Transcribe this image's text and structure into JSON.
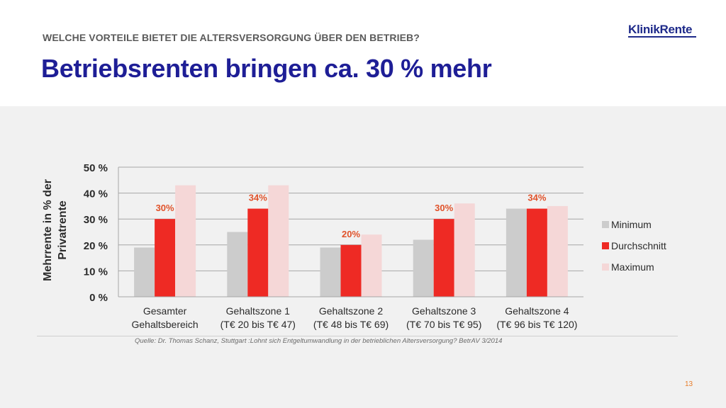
{
  "header": {
    "eyebrow": "WELCHE VORTEILE BIETET DIE ALTERSVERSORGUNG ÜBER DEN BETRIEB?",
    "title": "Betriebsrenten bringen ca. 30 % mehr",
    "logo": "KlinikRente"
  },
  "chart_data": {
    "type": "bar",
    "categories": [
      [
        "Gesamter",
        "Gehaltsbereich"
      ],
      [
        "Gehaltszone 1",
        "(T€ 20 bis T€ 47)"
      ],
      [
        "Gehaltszone 2",
        "(T€ 48 bis T€ 69)"
      ],
      [
        "Gehaltszone 3",
        "(T€ 70 bis T€ 95)"
      ],
      [
        "Gehaltszone 4",
        "(T€ 96 bis T€ 120)"
      ]
    ],
    "series": [
      {
        "name": "Minimum",
        "color": "#cccccc",
        "values": [
          19,
          25,
          19,
          22,
          34
        ]
      },
      {
        "name": "Durchschnitt",
        "color": "#ee2a24",
        "values": [
          30,
          34,
          20,
          30,
          34
        ],
        "data_labels": [
          "30%",
          "34%",
          "20%",
          "30%",
          "34%"
        ]
      },
      {
        "name": "Maximum",
        "color": "#f5d7d7",
        "values": [
          43,
          43,
          24,
          36,
          35
        ]
      }
    ],
    "ylabel": [
      "Mehrrente in % der",
      "Privatrente"
    ],
    "yticks": [
      "0 %",
      "10 %",
      "20 %",
      "30 %",
      "40 %",
      "50 %"
    ],
    "ylim": [
      0,
      50
    ],
    "grid": true,
    "legend": "right",
    "label_color": "#e0522a"
  },
  "footer": {
    "source": "Quelle: Dr. Thomas Schanz, Stuttgart :Lohnt sich Entgeltumwandlung in der betrieblichen Altersversorgung? BetrAV 3/2014",
    "page": "13"
  }
}
